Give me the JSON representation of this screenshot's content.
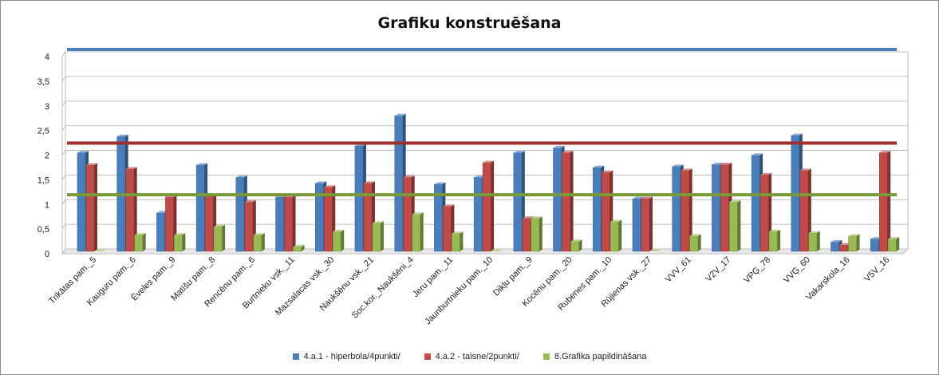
{
  "chart_data": {
    "type": "bar",
    "title": "Grafiku konstruēšana",
    "categories": [
      "Trikātas pam._5",
      "Kauguru pam._6",
      "Ēveles pam._9",
      "Matīšu pam._8",
      "Rencēnu pam._6",
      "Burtnieku vsk._11",
      "Mazsalacas vsk._30",
      "Naukšēnu vsk._21",
      "Soc.kor._Naukšēni_4",
      "Jeru pam._11",
      "Jaunburtnieku pam._10",
      "Dikļu pam._9",
      "Kocēnu pam._20",
      "Rubenes pam._10",
      "Rūjienas vsk._27",
      "VVV_61",
      "V2V_17",
      "VPĢ_78",
      "VVĢ_60",
      "Vakarskola_16",
      "V5V_16"
    ],
    "series": [
      {
        "name": "4.a.1 - hiperbola/4punkti/",
        "color": "#4a7ebb",
        "values": [
          2.0,
          2.33,
          0.78,
          1.75,
          1.5,
          1.1,
          1.38,
          2.14,
          2.75,
          1.36,
          1.5,
          2.0,
          2.1,
          1.7,
          1.07,
          1.72,
          1.76,
          1.95,
          2.35,
          0.19,
          0.25
        ]
      },
      {
        "name": "4.a.2 - taisne/2punkti/",
        "color": "#be4b48",
        "values": [
          1.75,
          1.67,
          1.1,
          1.12,
          1.0,
          1.1,
          1.3,
          1.38,
          1.5,
          0.91,
          1.8,
          0.67,
          2.0,
          1.6,
          1.07,
          1.64,
          1.76,
          1.55,
          1.64,
          0.13,
          2.0
        ]
      },
      {
        "name": "8.Grafika papildināšana",
        "color": "#98b954",
        "values": [
          0.0,
          0.33,
          0.33,
          0.5,
          0.33,
          0.09,
          0.4,
          0.57,
          0.75,
          0.36,
          0.0,
          0.67,
          0.2,
          0.6,
          0.0,
          0.31,
          1.0,
          0.4,
          0.37,
          0.31,
          0.25
        ]
      }
    ],
    "reference_lines": [
      {
        "value": 4.0,
        "color": "#4a7ebb"
      },
      {
        "value": 2.1,
        "color": "#9e2f2c"
      },
      {
        "value": 1.05,
        "color": "#7a9a3a"
      }
    ],
    "yticks": [
      "0",
      "0,5",
      "1",
      "1,5",
      "2",
      "2,5",
      "3",
      "3,5",
      "4"
    ],
    "ylim": [
      0,
      4
    ],
    "grid": true,
    "legend_position": "bottom"
  }
}
